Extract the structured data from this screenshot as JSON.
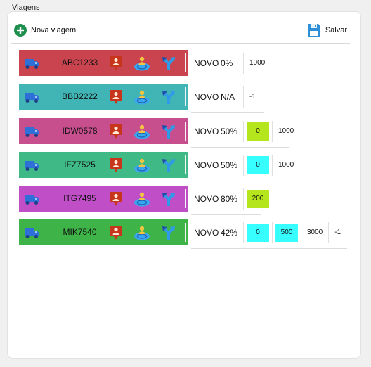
{
  "group_title": "Viagens",
  "toolbar": {
    "new_label": "Nova viagem",
    "save_label": "Salvar"
  },
  "colors": {
    "accent_green": "#1e8f4e",
    "save_blue": "#2f8fd8",
    "chip_lime": "#b5e61d",
    "chip_cyan": "#38ffff"
  },
  "trips": [
    {
      "plate": "ABC1233",
      "color": "#c9444e",
      "status": "NOVO",
      "progress": "0%",
      "cells": [
        {
          "value": "1000",
          "bg": ""
        }
      ]
    },
    {
      "plate": "BBB2222",
      "color": "#41b5b5",
      "status": "NOVO",
      "progress": "N/A",
      "cells": [
        {
          "value": "-1",
          "bg": ""
        }
      ]
    },
    {
      "plate": "IDW0578",
      "color": "#c84f8e",
      "status": "NOVO",
      "progress": "50%",
      "cells": [
        {
          "value": "0",
          "bg": "#b5e61d"
        },
        {
          "value": "1000",
          "bg": ""
        }
      ]
    },
    {
      "plate": "IFZ7525",
      "color": "#3fba86",
      "status": "NOVO",
      "progress": "50%",
      "cells": [
        {
          "value": "0",
          "bg": "#38ffff"
        },
        {
          "value": "1000",
          "bg": ""
        }
      ]
    },
    {
      "plate": "ITG7495",
      "color": "#c04fc7",
      "status": "NOVO",
      "progress": "80%",
      "cells": [
        {
          "value": "200",
          "bg": "#b5e61d"
        }
      ]
    },
    {
      "plate": "MIK7540",
      "color": "#3eb347",
      "status": "NOVO",
      "progress": "42%",
      "cells": [
        {
          "value": "0",
          "bg": "#38ffff"
        },
        {
          "value": "500",
          "bg": "#38ffff"
        },
        {
          "value": "3000",
          "bg": ""
        },
        {
          "value": "-1",
          "bg": ""
        }
      ]
    }
  ],
  "icons": {
    "truck": "truck-icon",
    "driver": "driver-pin-icon",
    "person": "person-radar-icon",
    "route": "route-fork-icon",
    "add": "plus-circle-icon",
    "save": "floppy-disk-icon"
  }
}
